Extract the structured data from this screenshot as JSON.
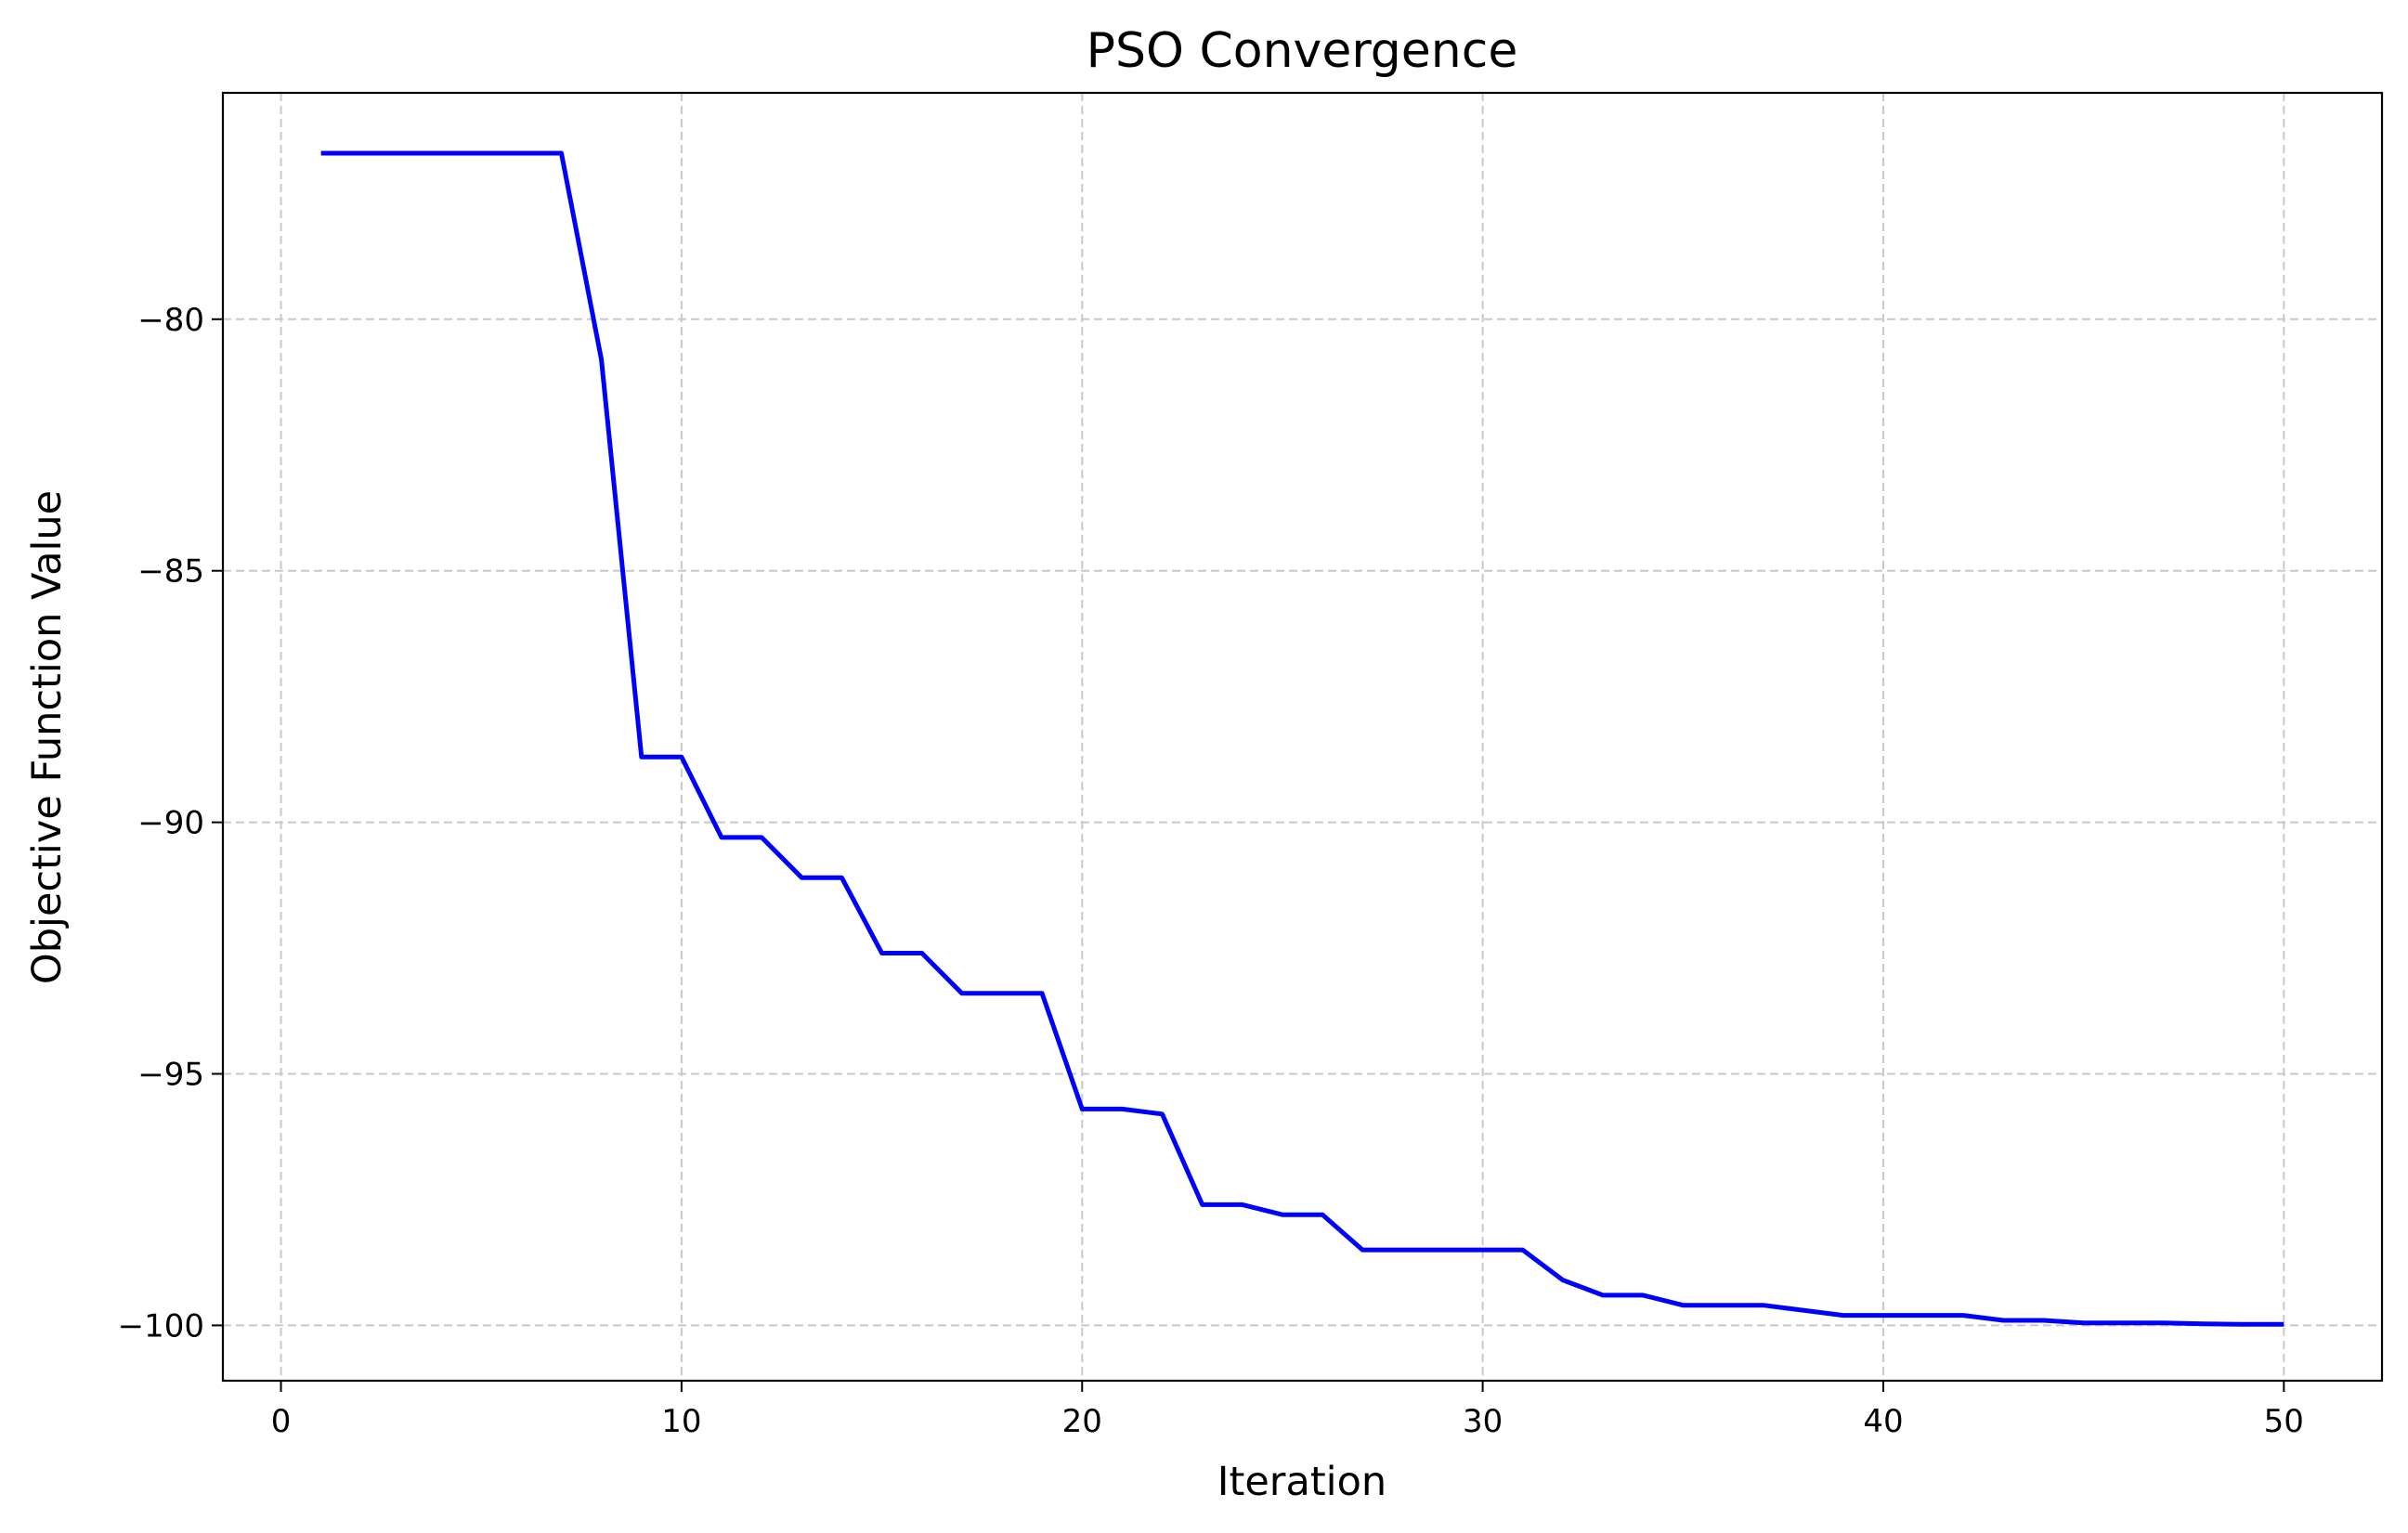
{
  "chart_data": {
    "type": "line",
    "title": "PSO Convergence",
    "xlabel": "Iteration",
    "ylabel": "Objective Function Value",
    "xlim": [
      -1.45,
      52.45
    ],
    "ylim": [
      -101.1,
      -75.5
    ],
    "xticks": [
      0,
      10,
      20,
      30,
      40,
      50
    ],
    "xtick_labels": [
      "0",
      "10",
      "20",
      "30",
      "40",
      "50"
    ],
    "yticks": [
      -80,
      -85,
      -90,
      -95,
      -100
    ],
    "ytick_labels": [
      "−80",
      "−85",
      "−90",
      "−95",
      "−100"
    ],
    "grid": true,
    "grid_style": "dashed",
    "line_color": "#0000ff",
    "grid_color": "#c8c8c8",
    "series": [
      {
        "x": [
          1,
          2,
          3,
          4,
          5,
          6,
          7,
          8,
          9,
          10,
          11,
          12,
          13,
          14,
          15,
          16,
          17,
          18,
          19,
          20,
          21,
          22,
          23,
          24,
          25,
          26,
          27,
          28,
          29,
          30,
          31,
          32,
          33,
          34,
          35,
          36,
          37,
          38,
          39,
          40,
          41,
          42,
          43,
          44,
          45,
          46,
          47,
          48,
          49,
          50
        ],
        "values": [
          -76.7,
          -76.7,
          -76.7,
          -76.7,
          -76.7,
          -76.7,
          -76.7,
          -80.8,
          -88.7,
          -88.7,
          -90.3,
          -90.3,
          -91.1,
          -91.1,
          -92.6,
          -92.6,
          -93.4,
          -93.4,
          -93.4,
          -95.7,
          -95.7,
          -95.8,
          -97.6,
          -97.6,
          -97.8,
          -97.8,
          -98.5,
          -98.5,
          -98.5,
          -98.5,
          -98.5,
          -99.1,
          -99.4,
          -99.4,
          -99.6,
          -99.6,
          -99.6,
          -99.7,
          -99.8,
          -99.8,
          -99.8,
          -99.8,
          -99.9,
          -99.9,
          -99.95,
          -99.95,
          -99.95,
          -99.97,
          -99.98,
          -99.98
        ]
      }
    ]
  }
}
